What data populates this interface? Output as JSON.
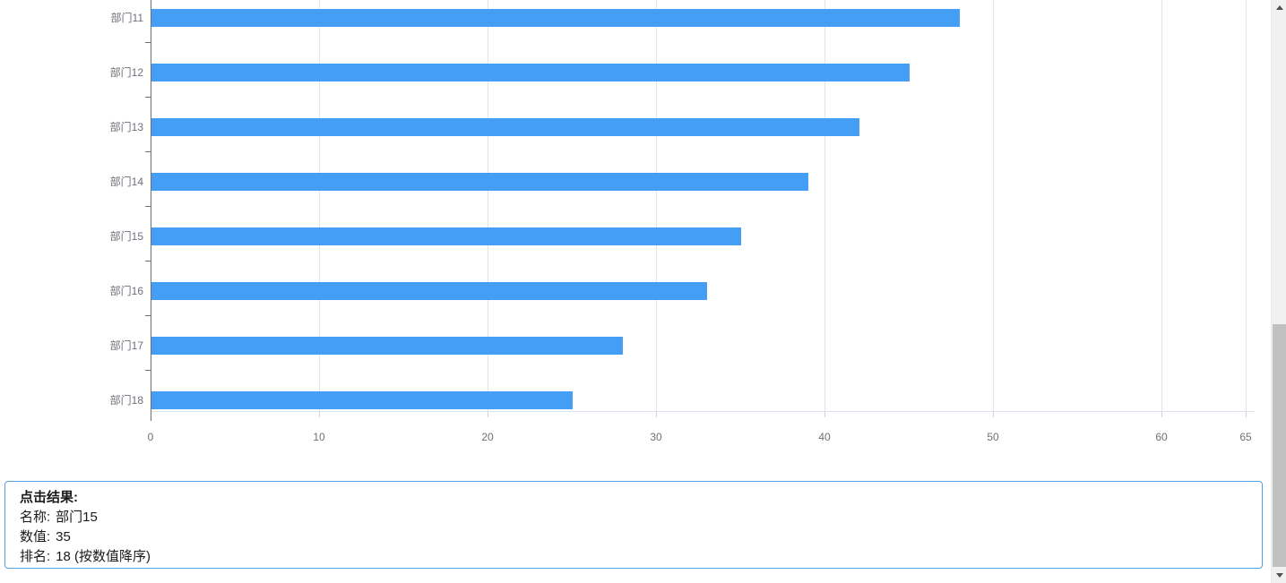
{
  "chart_data": {
    "type": "bar",
    "orientation": "horizontal",
    "title": "",
    "xlabel": "",
    "ylabel": "",
    "categories": [
      "部门11",
      "部门12",
      "部门13",
      "部门14",
      "部门15",
      "部门16",
      "部门17",
      "部门18"
    ],
    "values": [
      48,
      45,
      42,
      39,
      35,
      33,
      28,
      25
    ],
    "xlim": [
      0,
      65
    ],
    "x_ticks": [
      0,
      10,
      20,
      30,
      40,
      50,
      60,
      65
    ],
    "grid": true,
    "legend_position": "none",
    "bar_color": "#459ef6",
    "grid_line_color": "#e0e6f1",
    "axis_label_color": "#6e7079",
    "note": "top of chart is scrolled out of view; visible rows are 部门11 through 部门18"
  },
  "result_panel": {
    "border_color": "#54a1ea",
    "title": "点击结果:",
    "rows": [
      {
        "label": "名称:",
        "value": "部门15"
      },
      {
        "label": "数值:",
        "value": "35"
      },
      {
        "label": "排名:",
        "value": "18 (按数值降序)"
      }
    ]
  },
  "scrollbar": {
    "up_icon": "scrollbar-up-arrow",
    "down_icon": "scrollbar-down-arrow",
    "track_color": "#f1f1f1",
    "thumb_color": "#c1c1c1"
  }
}
